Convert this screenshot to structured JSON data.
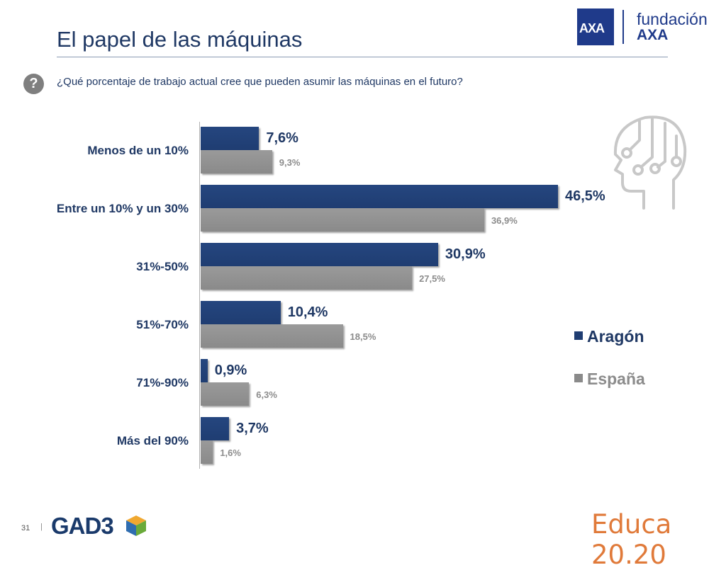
{
  "header": {
    "title": "El papel de las máquinas",
    "brand_line1": "fundación",
    "brand_line2": "AXA",
    "brand_mark": "AXA"
  },
  "question": {
    "icon": "question-mark-icon",
    "text": "¿Qué porcentaje de trabajo actual cree que pueden asumir las máquinas en el futuro?"
  },
  "chart_data": {
    "type": "bar",
    "orientation": "horizontal",
    "categories": [
      "Menos de un 10%",
      "Entre un 10% y un 30%",
      "31%-50%",
      "51%-70%",
      "71%-90%",
      "Más del 90%"
    ],
    "series": [
      {
        "name": "Aragón",
        "color": "#1f3d72",
        "values": [
          7.6,
          46.5,
          30.9,
          10.4,
          0.9,
          3.7
        ],
        "labels": [
          "7,6%",
          "46,5%",
          "30,9%",
          "10,4%",
          "0,9%",
          "3,7%"
        ]
      },
      {
        "name": "España",
        "color": "#8a8a8a",
        "values": [
          9.3,
          36.9,
          27.5,
          18.5,
          6.3,
          1.6
        ],
        "labels": [
          "9,3%",
          "36,9%",
          "27,5%",
          "18,5%",
          "6,3%",
          "1,6%"
        ]
      }
    ],
    "xlim": [
      0,
      50
    ],
    "legend_position": "right",
    "grid": false
  },
  "legend": [
    {
      "label": "Aragón",
      "color": "#1f3d72"
    },
    {
      "label": "España",
      "color": "#8a8a8a"
    }
  ],
  "footer": {
    "page_number": "31",
    "separator": "|",
    "logo_text": "GAD3",
    "educa_text": "Educa 20.20"
  }
}
